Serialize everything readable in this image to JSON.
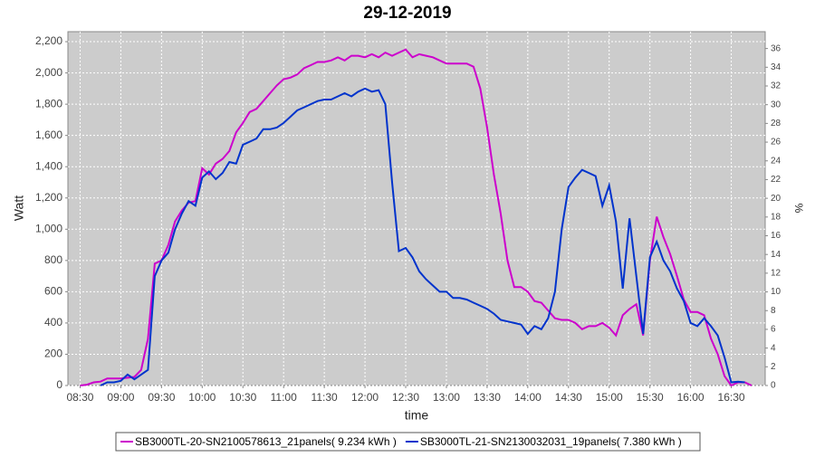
{
  "chart_data": {
    "type": "line",
    "title": "29-12-2019",
    "xlabel": "time",
    "ylabel": "Watt",
    "y2label": "%",
    "x": [
      "08:30",
      "08:35",
      "08:40",
      "08:45",
      "08:50",
      "08:55",
      "09:00",
      "09:05",
      "09:10",
      "09:15",
      "09:20",
      "09:25",
      "09:30",
      "09:35",
      "09:40",
      "09:45",
      "09:50",
      "09:55",
      "10:00",
      "10:05",
      "10:10",
      "10:15",
      "10:20",
      "10:25",
      "10:30",
      "10:35",
      "10:40",
      "10:45",
      "10:50",
      "10:55",
      "11:00",
      "11:05",
      "11:10",
      "11:15",
      "11:20",
      "11:25",
      "11:30",
      "11:35",
      "11:40",
      "11:45",
      "11:50",
      "11:55",
      "12:00",
      "12:05",
      "12:10",
      "12:15",
      "12:20",
      "12:25",
      "12:30",
      "12:35",
      "12:40",
      "12:45",
      "12:50",
      "12:55",
      "13:00",
      "13:05",
      "13:10",
      "13:15",
      "13:20",
      "13:25",
      "13:30",
      "13:35",
      "13:40",
      "13:45",
      "13:50",
      "13:55",
      "14:00",
      "14:05",
      "14:10",
      "14:15",
      "14:20",
      "14:25",
      "14:30",
      "14:35",
      "14:40",
      "14:45",
      "14:50",
      "14:55",
      "15:00",
      "15:05",
      "15:10",
      "15:15",
      "15:20",
      "15:25",
      "15:30",
      "15:35",
      "15:40",
      "15:45",
      "15:50",
      "15:55",
      "16:00",
      "16:05",
      "16:10",
      "16:15",
      "16:20",
      "16:25",
      "16:30",
      "16:35",
      "16:40",
      "16:45"
    ],
    "series": [
      {
        "name": "SB3000TL-20-SN2100578613_21panels( 9.234 kWh )",
        "color": "#cc00cc",
        "values": [
          0,
          5,
          20,
          25,
          45,
          45,
          45,
          50,
          55,
          100,
          300,
          780,
          800,
          900,
          1050,
          1120,
          1170,
          1180,
          1390,
          1350,
          1420,
          1450,
          1500,
          1620,
          1680,
          1750,
          1770,
          1820,
          1870,
          1920,
          1960,
          1970,
          1990,
          2030,
          2050,
          2070,
          2070,
          2080,
          2100,
          2080,
          2110,
          2110,
          2100,
          2120,
          2100,
          2130,
          2110,
          2130,
          2150,
          2100,
          2120,
          2110,
          2100,
          2080,
          2060,
          2060,
          2060,
          2060,
          2040,
          1900,
          1650,
          1350,
          1100,
          800,
          630,
          630,
          600,
          540,
          530,
          480,
          430,
          420,
          420,
          400,
          360,
          380,
          380,
          400,
          370,
          320,
          450,
          490,
          520,
          320,
          800,
          1080,
          950,
          840,
          700,
          550,
          470,
          470,
          450,
          300,
          200,
          60,
          0,
          20,
          20,
          0
        ]
      },
      {
        "name": "SB3000TL-21-SN2130032031_19panels( 7.380 kWh )",
        "color": "#0033cc",
        "values": [
          null,
          null,
          null,
          0,
          20,
          20,
          30,
          70,
          40,
          70,
          100,
          700,
          800,
          850,
          1000,
          1100,
          1180,
          1150,
          1330,
          1370,
          1320,
          1360,
          1430,
          1420,
          1540,
          1560,
          1580,
          1640,
          1640,
          1650,
          1680,
          1720,
          1760,
          1780,
          1800,
          1820,
          1830,
          1830,
          1850,
          1870,
          1850,
          1880,
          1900,
          1880,
          1890,
          1800,
          1300,
          860,
          880,
          820,
          730,
          680,
          640,
          600,
          600,
          560,
          560,
          550,
          530,
          510,
          490,
          460,
          420,
          410,
          400,
          390,
          330,
          380,
          360,
          430,
          600,
          1000,
          1270,
          1330,
          1380,
          1360,
          1340,
          1150,
          1280,
          1050,
          620,
          1070,
          700,
          330,
          820,
          920,
          800,
          730,
          620,
          540,
          400,
          380,
          430,
          380,
          320,
          180,
          20,
          25,
          20,
          null
        ]
      }
    ],
    "xlim": [
      "08:21",
      "16:55"
    ],
    "xticks": [
      "08:30",
      "09:00",
      "09:30",
      "10:00",
      "10:30",
      "11:00",
      "11:30",
      "12:00",
      "12:30",
      "13:00",
      "13:30",
      "14:00",
      "14:30",
      "15:00",
      "15:30",
      "16:00",
      "16:30"
    ],
    "ylim": [
      0,
      2264
    ],
    "yticks": [
      0,
      200,
      400,
      600,
      800,
      {
        "value": 1000,
        "label": "1,000"
      },
      {
        "value": 1200,
        "label": "1,200"
      },
      {
        "value": 1400,
        "label": "1,400"
      },
      {
        "value": 1600,
        "label": "1,600"
      },
      {
        "value": 1800,
        "label": "1,800"
      },
      {
        "value": 2000,
        "label": "2,000"
      },
      {
        "value": 2200,
        "label": "2,200"
      }
    ],
    "y2lim": [
      0,
      37.8
    ],
    "y2ticks": [
      0,
      2,
      4,
      6,
      8,
      10,
      12,
      14,
      16,
      18,
      20,
      22,
      24,
      26,
      28,
      30,
      32,
      34,
      36
    ],
    "grid": true
  }
}
